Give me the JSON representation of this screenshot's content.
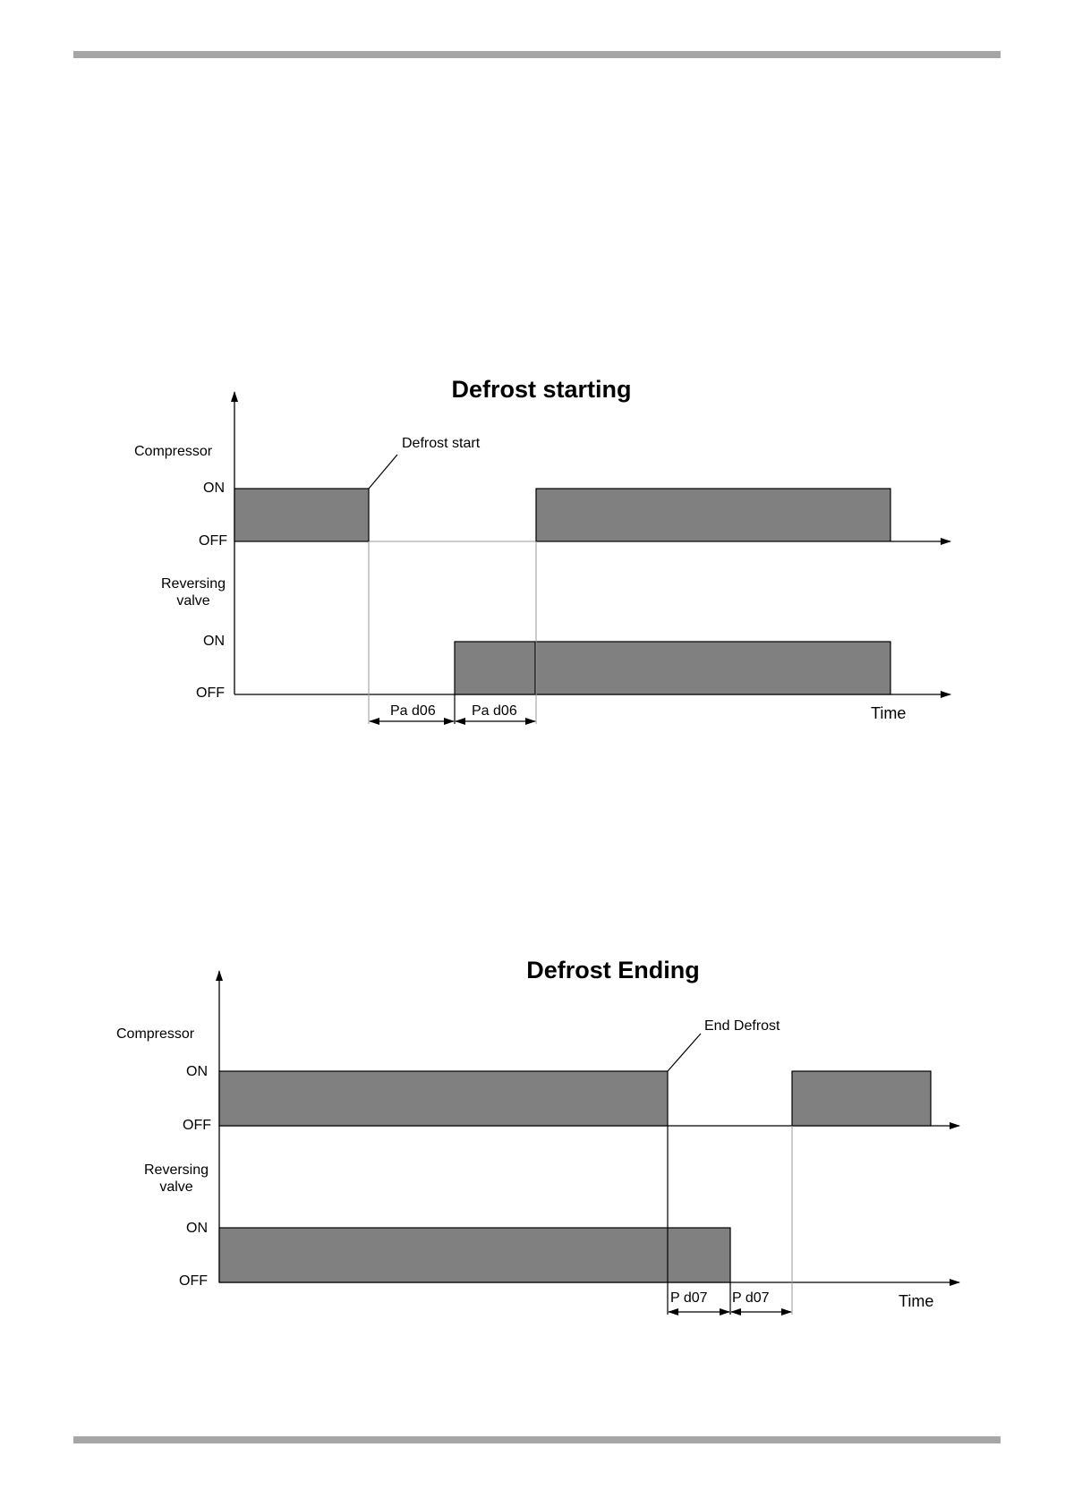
{
  "diagrams": {
    "starting": {
      "title": "Defrost starting",
      "compressor_label": "Compressor",
      "on_label": "ON",
      "off_label": "OFF",
      "valve_label_line1": "Reversing",
      "valve_label_line2": "valve",
      "event_label": "Defrost start",
      "interval_label": "Pa d06",
      "time_label": "Time"
    },
    "ending": {
      "title": "Defrost Ending",
      "compressor_label": "Compressor",
      "on_label": "ON",
      "off_label": "OFF",
      "valve_label_line1": "Reversing",
      "valve_label_line2": "valve",
      "event_label": "End Defrost",
      "interval_label": "P d07",
      "time_label": "Time"
    }
  },
  "colors": {
    "bar_fill": "#808080",
    "rule": "#a6a6a6"
  }
}
